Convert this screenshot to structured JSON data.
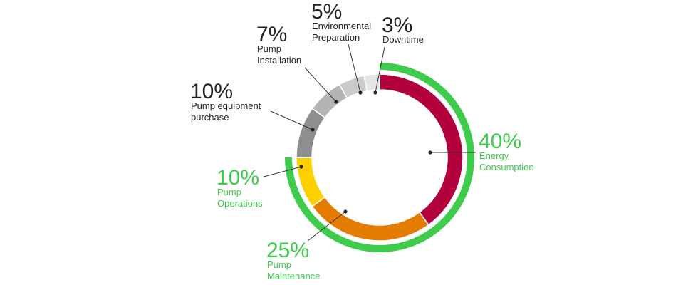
{
  "chart_data": {
    "type": "pie",
    "categories": [
      "Energy Consumption",
      "Pump Maintenance",
      "Pump Operations",
      "Pump equipment purchase",
      "Pump Installation",
      "Environmental Preparation",
      "Downtime"
    ],
    "values": [
      40,
      25,
      10,
      10,
      7,
      5,
      3
    ],
    "value_labels": [
      "40%",
      "25%",
      "10%",
      "10%",
      "7%",
      "5%",
      "3%"
    ],
    "label_lines": [
      [
        "Energy",
        "Consumption"
      ],
      [
        "Pump",
        "Maintenance"
      ],
      [
        "Pump",
        "Operations"
      ],
      [
        "Pump equipment",
        "purchase"
      ],
      [
        "Pump",
        "Installation"
      ],
      [
        "Environmental",
        "Preparation"
      ],
      [
        "Downtime"
      ]
    ],
    "colors": [
      "#b3003f",
      "#e37c00",
      "#ffd000",
      "#8e8e8e",
      "#b4b4b4",
      "#cbcbcb",
      "#e5e5e5"
    ],
    "highlight_color": "#3fcc4c",
    "highlighted": [
      true,
      true,
      true,
      false,
      false,
      false,
      false
    ],
    "highlight_label_color": "#3fcc4c",
    "default_label_color": "#222222"
  }
}
